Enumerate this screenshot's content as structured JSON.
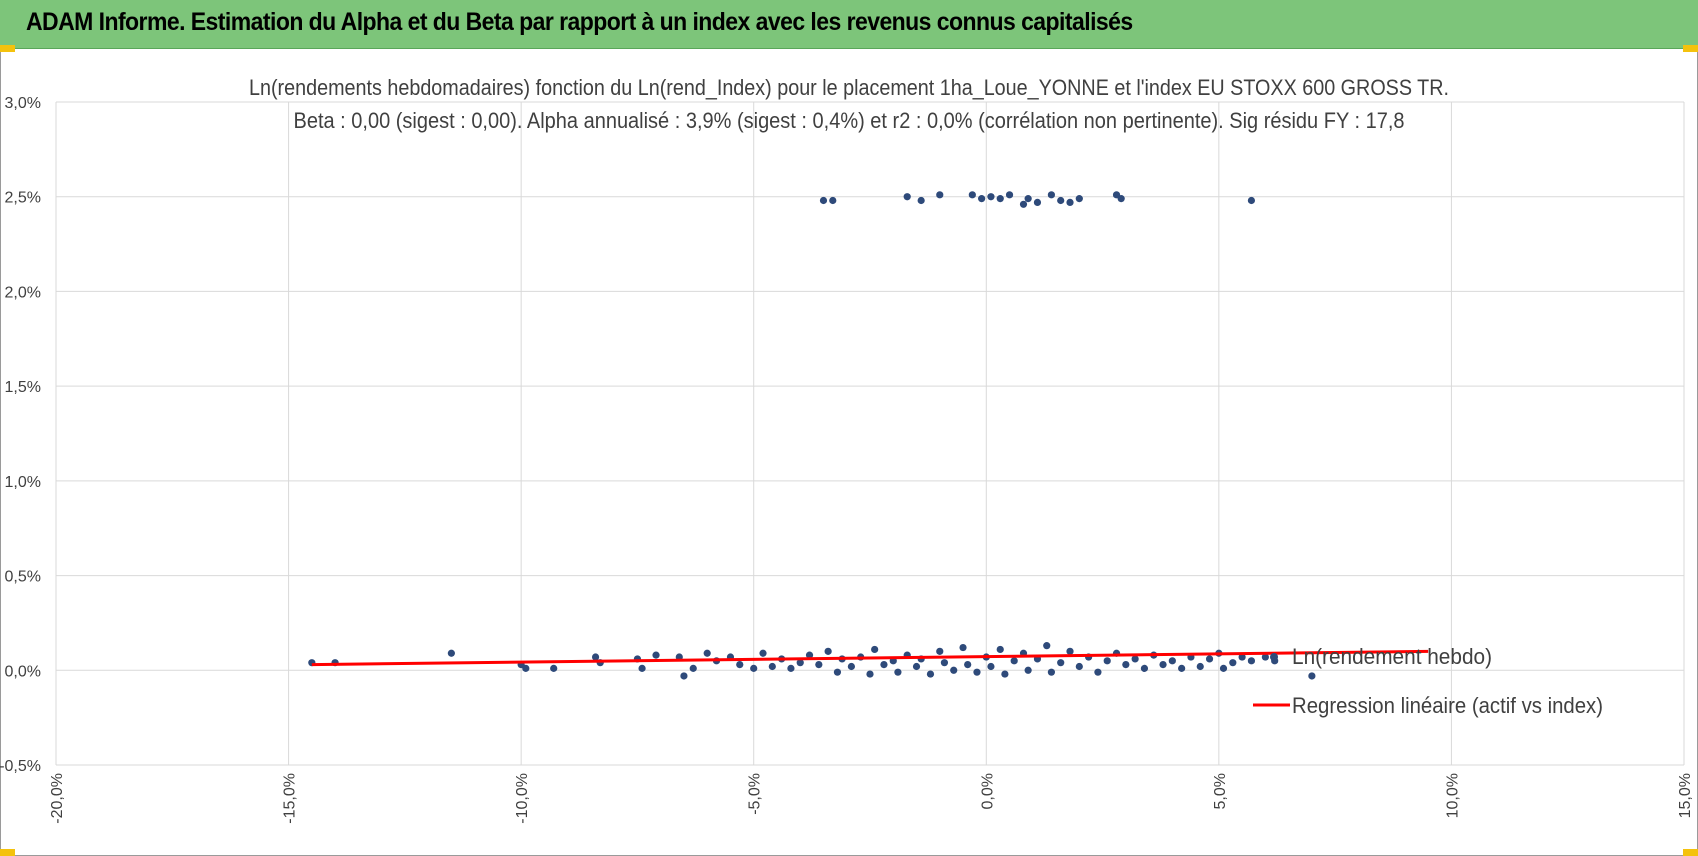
{
  "banner": {
    "title": "ADAM Informe. Estimation du Alpha et du Beta par rapport à un index avec les revenus connus capitalisés"
  },
  "chart_data": {
    "type": "scatter",
    "title": "Ln(rendements hebdomadaires) fonction du Ln(rend_Index) pour le placement 1ha_Loue_YONNE et l'index EU STOXX 600 GROSS TR.",
    "subtitle": "Beta : 0,00 (sigest : 0,00).  Alpha annualisé : 3,9% (sigest : 0,4%) et r2 : 0,0% (corrélation non pertinente). Sig résidu FY : 17,8",
    "xlabel": "",
    "ylabel": "",
    "xlim": [
      -20,
      15
    ],
    "ylim": [
      -0.5,
      3.0
    ],
    "x_tick_labels": [
      "-20,0%",
      "-15,0%",
      "-10,0%",
      "-5,0%",
      "0,0%",
      "5,0%",
      "10,0%",
      "15,0%"
    ],
    "y_tick_labels": [
      "3,0%",
      "2,5%",
      "2,0%",
      "1,5%",
      "1,0%",
      "0,5%",
      "0,0%",
      "-0,5%"
    ],
    "grid": true,
    "legend_position": "right",
    "series": [
      {
        "name": "Ln(rendement hebdo)",
        "color": "#2e4a7a",
        "marker": "circle",
        "points": [
          [
            -14.5,
            0.04
          ],
          [
            -14.0,
            0.04
          ],
          [
            -11.5,
            0.09
          ],
          [
            -10.0,
            0.03
          ],
          [
            -9.9,
            0.01
          ],
          [
            -9.3,
            0.01
          ],
          [
            -8.4,
            0.07
          ],
          [
            -8.3,
            0.04
          ],
          [
            -7.5,
            0.06
          ],
          [
            -7.4,
            0.01
          ],
          [
            -7.1,
            0.08
          ],
          [
            -6.6,
            0.07
          ],
          [
            -6.5,
            -0.03
          ],
          [
            -6.3,
            0.01
          ],
          [
            -6.0,
            0.09
          ],
          [
            -5.8,
            0.05
          ],
          [
            -5.5,
            0.07
          ],
          [
            -5.3,
            0.03
          ],
          [
            -5.0,
            0.01
          ],
          [
            -4.8,
            0.09
          ],
          [
            -4.6,
            0.02
          ],
          [
            -4.4,
            0.06
          ],
          [
            -4.2,
            0.01
          ],
          [
            -4.0,
            0.04
          ],
          [
            -3.8,
            0.08
          ],
          [
            -3.6,
            0.03
          ],
          [
            -3.4,
            0.1
          ],
          [
            -3.2,
            -0.01
          ],
          [
            -3.1,
            0.06
          ],
          [
            -2.9,
            0.02
          ],
          [
            -2.7,
            0.07
          ],
          [
            -2.5,
            -0.02
          ],
          [
            -2.4,
            0.11
          ],
          [
            -2.2,
            0.03
          ],
          [
            -2.0,
            0.05
          ],
          [
            -1.9,
            -0.01
          ],
          [
            -1.7,
            0.08
          ],
          [
            -1.5,
            0.02
          ],
          [
            -1.4,
            0.06
          ],
          [
            -1.2,
            -0.02
          ],
          [
            -1.0,
            0.1
          ],
          [
            -0.9,
            0.04
          ],
          [
            -0.7,
            0.0
          ],
          [
            -0.5,
            0.12
          ],
          [
            -0.4,
            0.03
          ],
          [
            -0.2,
            -0.01
          ],
          [
            0.0,
            0.07
          ],
          [
            0.1,
            0.02
          ],
          [
            0.3,
            0.11
          ],
          [
            0.4,
            -0.02
          ],
          [
            0.6,
            0.05
          ],
          [
            0.8,
            0.09
          ],
          [
            0.9,
            0.0
          ],
          [
            1.1,
            0.06
          ],
          [
            1.3,
            0.13
          ],
          [
            1.4,
            -0.01
          ],
          [
            1.6,
            0.04
          ],
          [
            1.8,
            0.1
          ],
          [
            2.0,
            0.02
          ],
          [
            2.2,
            0.07
          ],
          [
            2.4,
            -0.01
          ],
          [
            2.6,
            0.05
          ],
          [
            2.8,
            0.09
          ],
          [
            3.0,
            0.03
          ],
          [
            3.2,
            0.06
          ],
          [
            3.4,
            0.01
          ],
          [
            3.6,
            0.08
          ],
          [
            3.8,
            0.03
          ],
          [
            4.0,
            0.05
          ],
          [
            4.2,
            0.01
          ],
          [
            4.4,
            0.07
          ],
          [
            4.6,
            0.02
          ],
          [
            4.8,
            0.06
          ],
          [
            5.0,
            0.09
          ],
          [
            5.1,
            0.01
          ],
          [
            5.3,
            0.04
          ],
          [
            5.5,
            0.07
          ],
          [
            5.7,
            0.05
          ],
          [
            6.0,
            0.07
          ],
          [
            6.2,
            0.05
          ],
          [
            7.0,
            -0.03
          ],
          [
            -3.5,
            2.48
          ],
          [
            -3.3,
            2.48
          ],
          [
            -1.7,
            2.5
          ],
          [
            -1.4,
            2.48
          ],
          [
            -1.0,
            2.51
          ],
          [
            -0.3,
            2.51
          ],
          [
            -0.1,
            2.49
          ],
          [
            0.1,
            2.5
          ],
          [
            0.3,
            2.49
          ],
          [
            0.5,
            2.51
          ],
          [
            0.8,
            2.46
          ],
          [
            0.9,
            2.49
          ],
          [
            1.1,
            2.47
          ],
          [
            1.4,
            2.51
          ],
          [
            1.6,
            2.48
          ],
          [
            1.8,
            2.47
          ],
          [
            2.0,
            2.49
          ],
          [
            2.8,
            2.51
          ],
          [
            2.9,
            2.49
          ],
          [
            5.7,
            2.48
          ]
        ]
      },
      {
        "name": "Regression linéaire (actif vs index)",
        "color": "#ff0000",
        "type": "line",
        "points": [
          [
            -14.5,
            0.03
          ],
          [
            9.5,
            0.1
          ]
        ]
      }
    ]
  }
}
